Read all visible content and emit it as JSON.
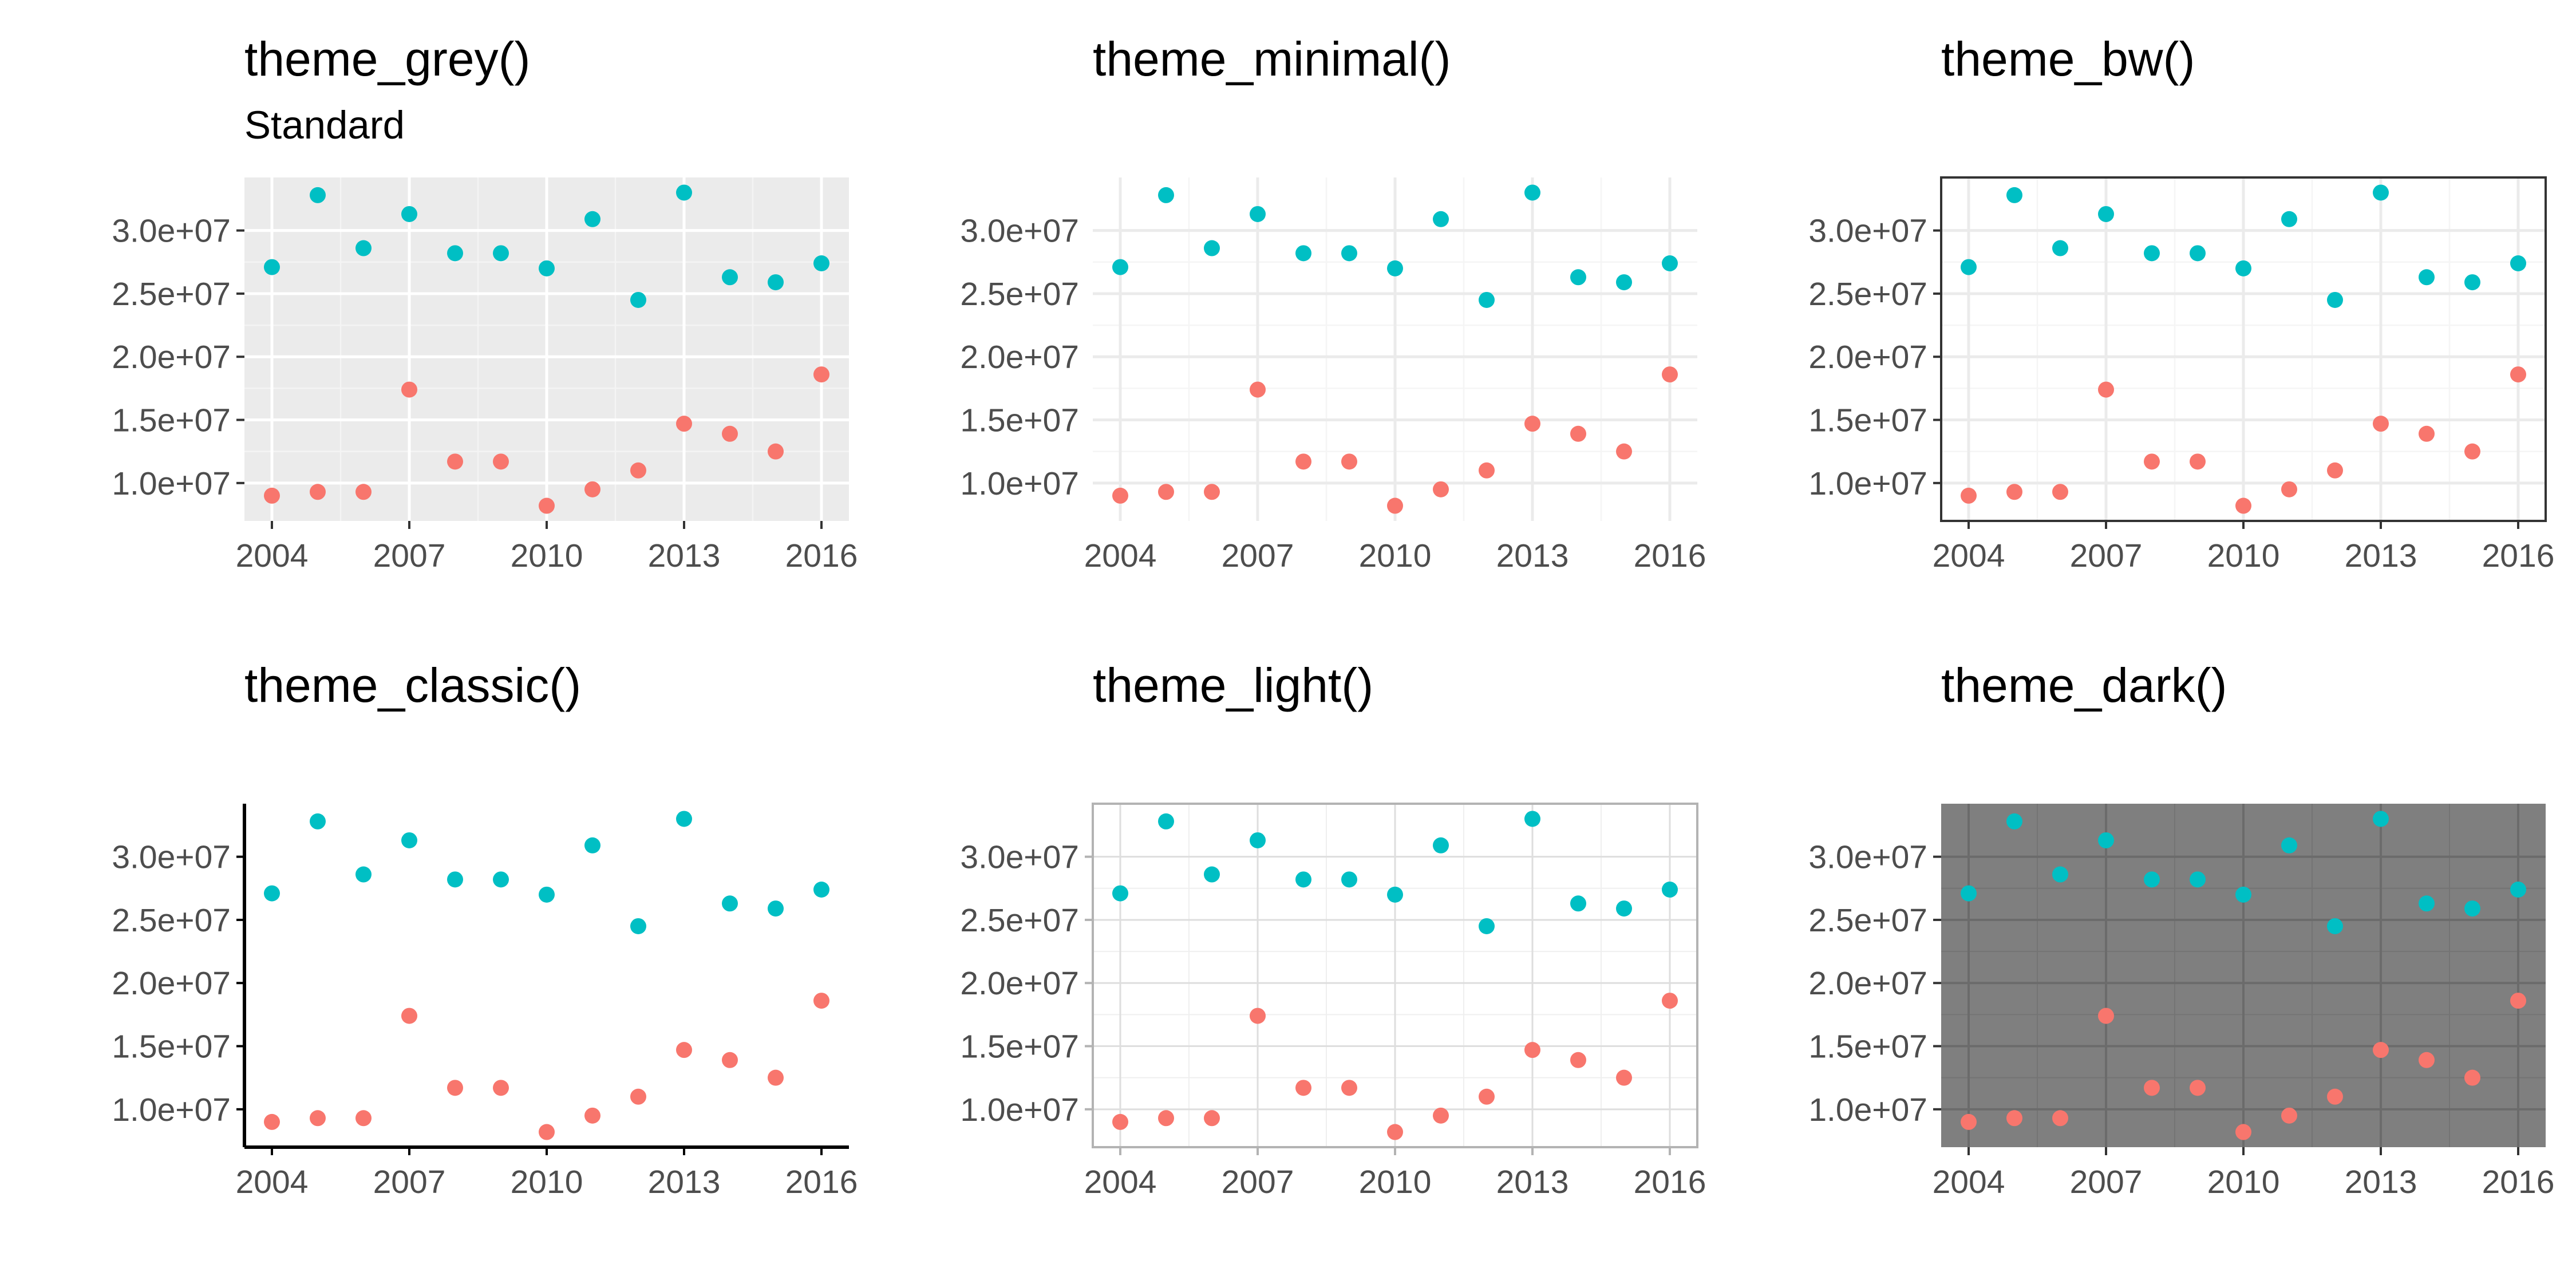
{
  "chart_data": [
    {
      "type": "scatter",
      "theme": "grey",
      "title": "theme_grey()",
      "subtitle": "Standard",
      "x": [
        2004,
        2005,
        2006,
        2007,
        2008,
        2009,
        2010,
        2011,
        2012,
        2013,
        2014,
        2015,
        2016
      ],
      "series": [
        {
          "color": "#F8766D",
          "values": [
            9000000.0,
            9300000.0,
            9300000.0,
            17400000.0,
            11700000.0,
            11700000.0,
            8200000.0,
            9500000.0,
            11000000.0,
            14700000.0,
            13900000.0,
            12500000.0,
            18600000.0
          ]
        },
        {
          "color": "#00BFC4",
          "values": [
            27100000.0,
            32800000.0,
            28600000.0,
            31300000.0,
            28200000.0,
            28200000.0,
            27000000.0,
            30900000.0,
            24500000.0,
            33000000.0,
            26300000.0,
            25900000.0,
            27400000.0
          ]
        }
      ],
      "xticks": [
        "2004",
        "2007",
        "2010",
        "2013",
        "2016"
      ],
      "yticks": [
        "1.0e+07",
        "1.5e+07",
        "2.0e+07",
        "2.5e+07",
        "3.0e+07"
      ],
      "xlim": [
        2003.4,
        2016.6
      ],
      "ylim": [
        7000000.0,
        34200000.0
      ],
      "grid": true,
      "background": "#EBEBEB"
    },
    {
      "type": "scatter",
      "theme": "minimal",
      "title": "theme_minimal()",
      "x": [
        2004,
        2005,
        2006,
        2007,
        2008,
        2009,
        2010,
        2011,
        2012,
        2013,
        2014,
        2015,
        2016
      ],
      "series": [
        {
          "color": "#F8766D",
          "values": [
            9000000.0,
            9300000.0,
            9300000.0,
            17400000.0,
            11700000.0,
            11700000.0,
            8200000.0,
            9500000.0,
            11000000.0,
            14700000.0,
            13900000.0,
            12500000.0,
            18600000.0
          ]
        },
        {
          "color": "#00BFC4",
          "values": [
            27100000.0,
            32800000.0,
            28600000.0,
            31300000.0,
            28200000.0,
            28200000.0,
            27000000.0,
            30900000.0,
            24500000.0,
            33000000.0,
            26300000.0,
            25900000.0,
            27400000.0
          ]
        }
      ],
      "xticks": [
        "2004",
        "2007",
        "2010",
        "2013",
        "2016"
      ],
      "yticks": [
        "1.0e+07",
        "1.5e+07",
        "2.0e+07",
        "2.5e+07",
        "3.0e+07"
      ],
      "xlim": [
        2003.4,
        2016.6
      ],
      "ylim": [
        7000000.0,
        34200000.0
      ],
      "grid": true,
      "background": "#FFFFFF"
    },
    {
      "type": "scatter",
      "theme": "bw",
      "title": "theme_bw()",
      "x": [
        2004,
        2005,
        2006,
        2007,
        2008,
        2009,
        2010,
        2011,
        2012,
        2013,
        2014,
        2015,
        2016
      ],
      "series": [
        {
          "color": "#F8766D",
          "values": [
            9000000.0,
            9300000.0,
            9300000.0,
            17400000.0,
            11700000.0,
            11700000.0,
            8200000.0,
            9500000.0,
            11000000.0,
            14700000.0,
            13900000.0,
            12500000.0,
            18600000.0
          ]
        },
        {
          "color": "#00BFC4",
          "values": [
            27100000.0,
            32800000.0,
            28600000.0,
            31300000.0,
            28200000.0,
            28200000.0,
            27000000.0,
            30900000.0,
            24500000.0,
            33000000.0,
            26300000.0,
            25900000.0,
            27400000.0
          ]
        }
      ],
      "xticks": [
        "2004",
        "2007",
        "2010",
        "2013",
        "2016"
      ],
      "yticks": [
        "1.0e+07",
        "1.5e+07",
        "2.0e+07",
        "2.5e+07",
        "3.0e+07"
      ],
      "xlim": [
        2003.4,
        2016.6
      ],
      "ylim": [
        7000000.0,
        34200000.0
      ],
      "grid": true,
      "background": "#FFFFFF"
    },
    {
      "type": "scatter",
      "theme": "classic",
      "title": "theme_classic()",
      "x": [
        2004,
        2005,
        2006,
        2007,
        2008,
        2009,
        2010,
        2011,
        2012,
        2013,
        2014,
        2015,
        2016
      ],
      "series": [
        {
          "color": "#F8766D",
          "values": [
            9000000.0,
            9300000.0,
            9300000.0,
            17400000.0,
            11700000.0,
            11700000.0,
            8200000.0,
            9500000.0,
            11000000.0,
            14700000.0,
            13900000.0,
            12500000.0,
            18600000.0
          ]
        },
        {
          "color": "#00BFC4",
          "values": [
            27100000.0,
            32800000.0,
            28600000.0,
            31300000.0,
            28200000.0,
            28200000.0,
            27000000.0,
            30900000.0,
            24500000.0,
            33000000.0,
            26300000.0,
            25900000.0,
            27400000.0
          ]
        }
      ],
      "xticks": [
        "2004",
        "2007",
        "2010",
        "2013",
        "2016"
      ],
      "yticks": [
        "1.0e+07",
        "1.5e+07",
        "2.0e+07",
        "2.5e+07",
        "3.0e+07"
      ],
      "xlim": [
        2003.4,
        2016.6
      ],
      "ylim": [
        7000000.0,
        34200000.0
      ],
      "grid": false,
      "background": "#FFFFFF"
    },
    {
      "type": "scatter",
      "theme": "light",
      "title": "theme_light()",
      "x": [
        2004,
        2005,
        2006,
        2007,
        2008,
        2009,
        2010,
        2011,
        2012,
        2013,
        2014,
        2015,
        2016
      ],
      "series": [
        {
          "color": "#F8766D",
          "values": [
            9000000.0,
            9300000.0,
            9300000.0,
            17400000.0,
            11700000.0,
            11700000.0,
            8200000.0,
            9500000.0,
            11000000.0,
            14700000.0,
            13900000.0,
            12500000.0,
            18600000.0
          ]
        },
        {
          "color": "#00BFC4",
          "values": [
            27100000.0,
            32800000.0,
            28600000.0,
            31300000.0,
            28200000.0,
            28200000.0,
            27000000.0,
            30900000.0,
            24500000.0,
            33000000.0,
            26300000.0,
            25900000.0,
            27400000.0
          ]
        }
      ],
      "xticks": [
        "2004",
        "2007",
        "2010",
        "2013",
        "2016"
      ],
      "yticks": [
        "1.0e+07",
        "1.5e+07",
        "2.0e+07",
        "2.5e+07",
        "3.0e+07"
      ],
      "xlim": [
        2003.4,
        2016.6
      ],
      "ylim": [
        7000000.0,
        34200000.0
      ],
      "grid": true,
      "background": "#FFFFFF"
    },
    {
      "type": "scatter",
      "theme": "dark",
      "title": "theme_dark()",
      "x": [
        2004,
        2005,
        2006,
        2007,
        2008,
        2009,
        2010,
        2011,
        2012,
        2013,
        2014,
        2015,
        2016
      ],
      "series": [
        {
          "color": "#F8766D",
          "values": [
            9000000.0,
            9300000.0,
            9300000.0,
            17400000.0,
            11700000.0,
            11700000.0,
            8200000.0,
            9500000.0,
            11000000.0,
            14700000.0,
            13900000.0,
            12500000.0,
            18600000.0
          ]
        },
        {
          "color": "#00BFC4",
          "values": [
            27100000.0,
            32800000.0,
            28600000.0,
            31300000.0,
            28200000.0,
            28200000.0,
            27000000.0,
            30900000.0,
            24500000.0,
            33000000.0,
            26300000.0,
            25900000.0,
            27400000.0
          ]
        }
      ],
      "xticks": [
        "2004",
        "2007",
        "2010",
        "2013",
        "2016"
      ],
      "yticks": [
        "1.0e+07",
        "1.5e+07",
        "2.0e+07",
        "2.5e+07",
        "3.0e+07"
      ],
      "xlim": [
        2003.4,
        2016.6
      ],
      "ylim": [
        7000000.0,
        34200000.0
      ],
      "grid": true,
      "background": "#7F7F7F"
    }
  ]
}
